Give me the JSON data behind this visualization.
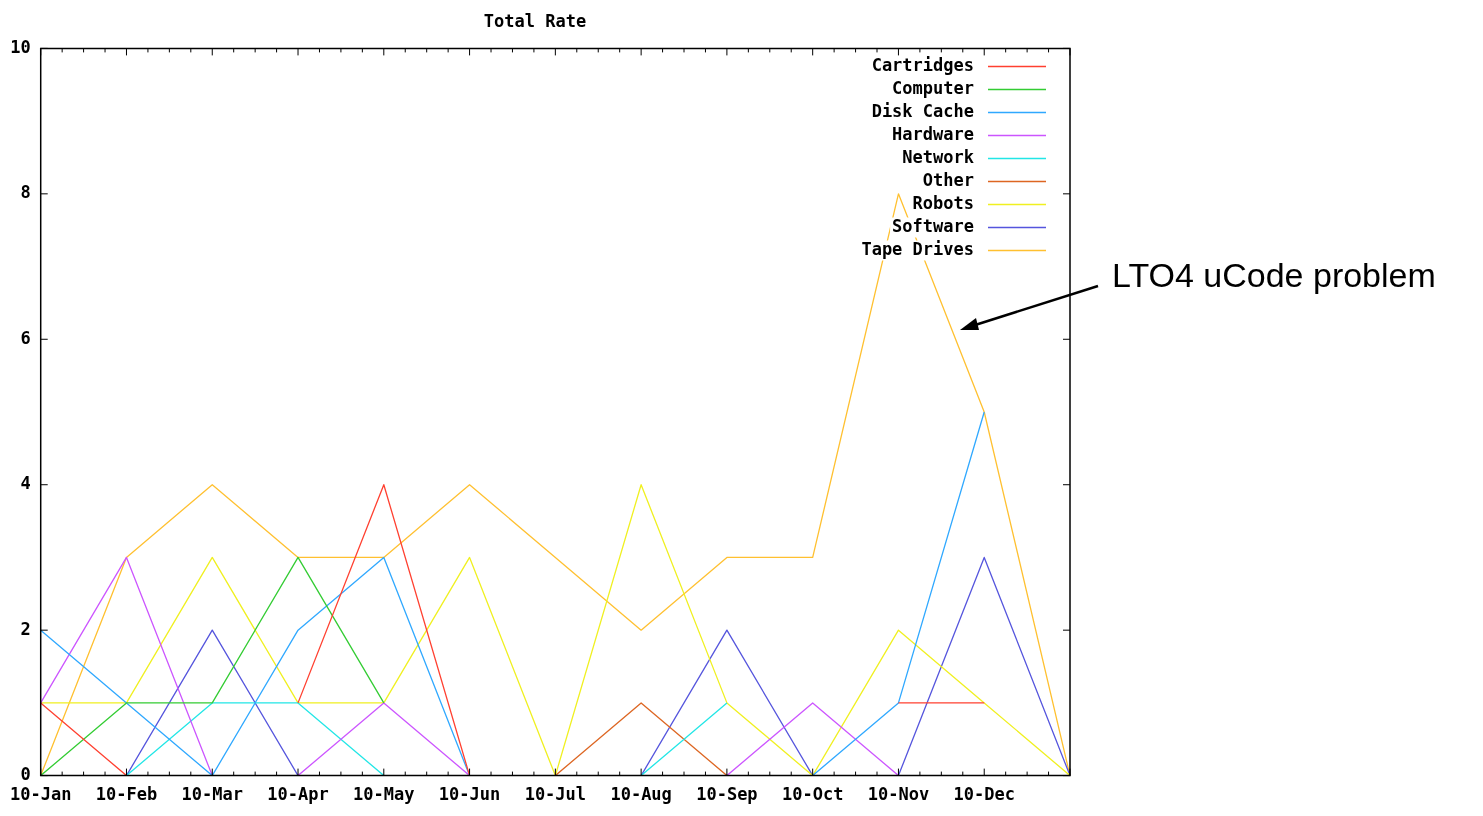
{
  "chart_data": {
    "type": "line",
    "title": "Total Rate",
    "categories": [
      "10-Jan",
      "10-Feb",
      "10-Mar",
      "10-Apr",
      "10-May",
      "10-Jun",
      "10-Jul",
      "10-Aug",
      "10-Sep",
      "10-Oct",
      "10-Nov",
      "10-Dec",
      null
    ],
    "series": [
      {
        "name": "Cartridges",
        "color": "#ff4030",
        "values": [
          1,
          0,
          null,
          1,
          4,
          0,
          null,
          null,
          null,
          null,
          1,
          1,
          null
        ]
      },
      {
        "name": "Computer",
        "color": "#33cc33",
        "values": [
          0,
          1,
          1,
          3,
          1,
          null,
          null,
          null,
          null,
          null,
          null,
          null,
          null
        ]
      },
      {
        "name": "Disk Cache",
        "color": "#2fa8ff",
        "values": [
          2,
          1,
          0,
          2,
          3,
          0,
          null,
          null,
          null,
          0,
          1,
          5,
          null
        ]
      },
      {
        "name": "Hardware",
        "color": "#cc55ff",
        "values": [
          1,
          3,
          0,
          0,
          1,
          0,
          null,
          null,
          0,
          1,
          0,
          null,
          null
        ]
      },
      {
        "name": "Network",
        "color": "#22e6e6",
        "values": [
          null,
          0,
          1,
          1,
          0,
          null,
          null,
          0,
          1,
          null,
          null,
          null,
          null
        ]
      },
      {
        "name": "Other",
        "color": "#dd6622",
        "values": [
          null,
          null,
          null,
          null,
          null,
          null,
          0,
          1,
          0,
          null,
          null,
          null,
          null
        ]
      },
      {
        "name": "Robots",
        "color": "#f0f020",
        "values": [
          1,
          1,
          3,
          1,
          1,
          3,
          0,
          4,
          1,
          0,
          2,
          1,
          0
        ]
      },
      {
        "name": "Software",
        "color": "#5555dd",
        "values": [
          null,
          0,
          2,
          0,
          null,
          null,
          null,
          0,
          2,
          0,
          0,
          3,
          0
        ]
      },
      {
        "name": "Tape Drives",
        "color": "#ffc030",
        "values": [
          0,
          3,
          4,
          3,
          3,
          4,
          3,
          2,
          3,
          3,
          8,
          5,
          0
        ]
      }
    ],
    "ylim": [
      0,
      10
    ],
    "yticks": [
      0,
      2,
      4,
      6,
      8,
      10
    ],
    "grid": false,
    "legend": "top right",
    "marker": "none",
    "line_style": "solid",
    "annotations": [
      "LTO4 uCode problem"
    ]
  }
}
